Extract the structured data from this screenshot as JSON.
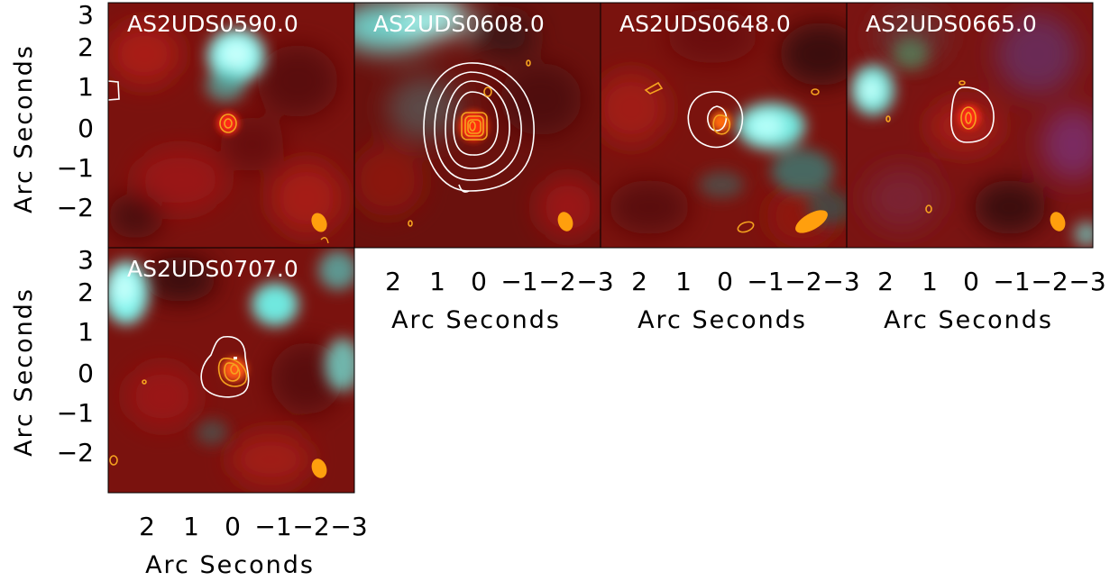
{
  "figure": {
    "axis_label": "Arc Seconds",
    "y_tick_labels": [
      "3",
      "2",
      "1",
      "0",
      "−1",
      "−2"
    ],
    "x_tick_labels": [
      "2",
      "1",
      "0",
      "−1",
      "−2",
      "−3"
    ],
    "colors": {
      "background_red": "#8a1410",
      "cyan_source": "#5fe3dc",
      "submm_contour": "#ffffff",
      "alma_contour": "#f5a21f",
      "beam": "#ff9f0d"
    },
    "panels": [
      {
        "id": "AS2UDS0590.0"
      },
      {
        "id": "AS2UDS0608.0"
      },
      {
        "id": "AS2UDS0648.0"
      },
      {
        "id": "AS2UDS0665.0"
      },
      {
        "id": "AS2UDS0707.0"
      }
    ]
  }
}
